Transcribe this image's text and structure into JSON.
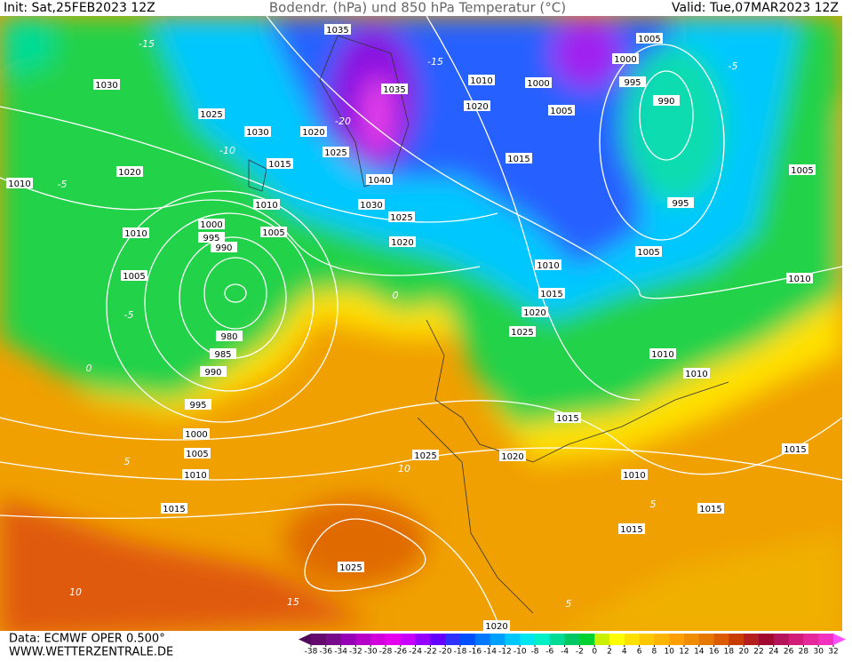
{
  "header": {
    "init": "Init: Sat,25FEB2023 12Z",
    "title": "Bodendr. (hPa) und 850 hPa Temperatur (°C)",
    "valid": "Valid: Tue,07MAR2023 12Z"
  },
  "footer": {
    "data_source": "Data: ECMWF OPER 0.500°",
    "website": "WWW.WETTERZENTRALE.DE"
  },
  "isobar_labels": [
    1035,
    1035,
    1010,
    1000,
    1020,
    1005,
    1005,
    1000,
    995,
    990,
    1015,
    1040,
    1030,
    1025,
    1020,
    1010,
    1005,
    1000,
    995,
    990,
    1010,
    1005,
    1020,
    1010,
    1030,
    1025,
    1030,
    1020,
    1015,
    1025,
    980,
    985,
    990,
    995,
    1000,
    1005,
    1010,
    1015,
    1025,
    1020,
    1010,
    1015,
    1020,
    1025,
    1005,
    995,
    1005,
    1010,
    1010,
    1015,
    1010,
    1015,
    1015,
    1015,
    1025,
    1020,
    1010
  ],
  "temperature_labels": [
    -15,
    -20,
    -10,
    -5,
    0,
    5,
    10,
    10,
    15,
    0,
    5,
    -5,
    -15,
    -5,
    5
  ],
  "colorbar": {
    "ticks": [
      -38,
      -36,
      -34,
      -32,
      -30,
      -28,
      -26,
      -24,
      -22,
      -20,
      -18,
      -16,
      -14,
      -12,
      -10,
      -8,
      -6,
      -4,
      -2,
      0,
      2,
      4,
      6,
      8,
      10,
      12,
      14,
      16,
      18,
      20,
      22,
      24,
      26,
      28,
      30,
      32
    ],
    "colors": [
      "#640a6e",
      "#780a8c",
      "#9600b4",
      "#b400c8",
      "#d200dc",
      "#e600f0",
      "#c800ff",
      "#9600ff",
      "#6400ff",
      "#3232ff",
      "#0050ff",
      "#0078ff",
      "#00a0ff",
      "#00c8ff",
      "#00e6f0",
      "#00f0c8",
      "#00dc96",
      "#00c864",
      "#00d232",
      "#c8f000",
      "#ffff00",
      "#ffe100",
      "#ffc800",
      "#ffb400",
      "#ffa000",
      "#f08c00",
      "#e67800",
      "#dc5a00",
      "#c83c00",
      "#b41e1e",
      "#a00a32",
      "#b4145a",
      "#d21e78",
      "#e6289b",
      "#f032be"
    ],
    "low_color": "#500a5a",
    "high_color": "#ff50ff"
  }
}
